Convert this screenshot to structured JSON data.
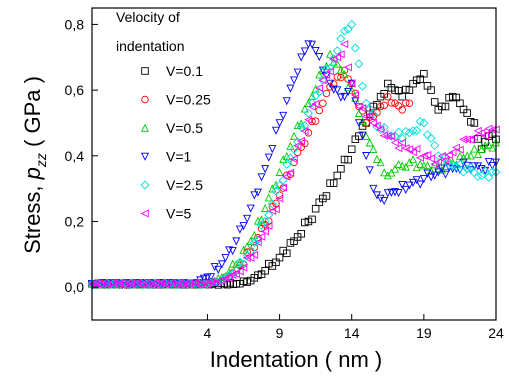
{
  "chart_data": {
    "type": "scatter",
    "title": "",
    "xlabel": "Indentation  ( nm )",
    "ylabel_main": "Stress, ",
    "ylabel_sym": "p",
    "ylabel_sub": "zz",
    "ylabel_unit": "  ( GPa )",
    "xlim": [
      -4,
      24
    ],
    "ylim": [
      -0.1,
      0.85
    ],
    "xticks": [
      4,
      9,
      14,
      19,
      24
    ],
    "xtick_labels": [
      "4",
      "9",
      "14",
      "19",
      "24"
    ],
    "yticks": [
      0.0,
      0.2,
      0.4,
      0.6,
      0.8
    ],
    "ytick_labels": [
      "0,0",
      "0,2",
      "0,4",
      "0,6",
      "0,8"
    ],
    "grid": false,
    "legend_title": "Velocity of indentation",
    "legend_title_lines": [
      "Velocity of",
      "indentation"
    ],
    "legend_position": "top-center",
    "series": [
      {
        "name": "V=0.1",
        "marker": "square",
        "color": "#000000",
        "x": [
          -4,
          6,
          7,
          8,
          9,
          10,
          11,
          12,
          13,
          14,
          14.5,
          15,
          15.5,
          16,
          16.5,
          17,
          17.5,
          18,
          18.5,
          19,
          19.5,
          20,
          20.5,
          21,
          21.5,
          22,
          22.5,
          23,
          23.5,
          24
        ],
        "y": [
          0.01,
          0.01,
          0.02,
          0.05,
          0.09,
          0.14,
          0.2,
          0.27,
          0.34,
          0.42,
          0.46,
          0.5,
          0.55,
          0.58,
          0.62,
          0.6,
          0.58,
          0.6,
          0.63,
          0.65,
          0.6,
          0.54,
          0.55,
          0.58,
          0.56,
          0.53,
          0.5,
          0.42,
          0.46,
          0.45
        ]
      },
      {
        "name": "V=0.25",
        "marker": "circle",
        "color": "#ff0000",
        "x": [
          -4,
          4,
          5,
          6,
          7,
          8,
          9,
          10,
          11,
          12,
          12.5,
          13,
          13.5,
          14,
          14.5,
          15,
          15.5,
          16,
          16.5,
          17,
          17.5,
          18
        ],
        "y": [
          0.01,
          0.01,
          0.02,
          0.05,
          0.11,
          0.19,
          0.28,
          0.38,
          0.47,
          0.56,
          0.61,
          0.64,
          0.66,
          0.62,
          0.55,
          0.5,
          0.52,
          0.55,
          0.58,
          0.56,
          0.54,
          0.56
        ]
      },
      {
        "name": "V=0.5",
        "marker": "triangle-up",
        "color": "#00cc00",
        "x": [
          -4,
          4,
          5,
          6,
          7,
          8,
          9,
          10,
          11,
          12,
          12.5,
          13,
          14,
          14.5,
          15,
          15.5,
          16,
          16.5,
          17,
          18,
          19,
          20,
          21,
          22,
          23,
          24
        ],
        "y": [
          0.01,
          0.01,
          0.03,
          0.07,
          0.14,
          0.24,
          0.35,
          0.46,
          0.56,
          0.66,
          0.71,
          0.68,
          0.6,
          0.53,
          0.46,
          0.42,
          0.38,
          0.34,
          0.36,
          0.38,
          0.37,
          0.36,
          0.38,
          0.4,
          0.42,
          0.44
        ]
      },
      {
        "name": "V=1",
        "marker": "triangle-down",
        "color": "#0000ff",
        "x": [
          -4,
          3,
          4,
          5,
          6,
          7,
          8,
          9,
          10,
          10.5,
          11,
          11.5,
          12,
          12.5,
          13,
          13.5,
          14,
          14.5,
          15,
          15.5,
          16,
          17,
          18,
          19,
          20,
          21,
          22,
          23,
          24
        ],
        "y": [
          0.01,
          0.01,
          0.03,
          0.07,
          0.14,
          0.24,
          0.36,
          0.5,
          0.63,
          0.7,
          0.74,
          0.72,
          0.66,
          0.62,
          0.6,
          0.58,
          0.62,
          0.5,
          0.4,
          0.3,
          0.27,
          0.29,
          0.31,
          0.33,
          0.35,
          0.36,
          0.37,
          0.36,
          0.38
        ]
      },
      {
        "name": "V=2.5",
        "marker": "diamond",
        "color": "#00dddd",
        "x": [
          -4,
          4,
          5,
          6,
          7,
          8,
          9,
          10,
          11,
          12,
          13,
          13.5,
          14,
          14.5,
          15,
          16,
          17,
          18,
          19,
          20,
          21,
          22,
          23,
          24
        ],
        "y": [
          0.01,
          0.01,
          0.02,
          0.05,
          0.11,
          0.2,
          0.31,
          0.42,
          0.53,
          0.63,
          0.72,
          0.78,
          0.8,
          0.68,
          0.56,
          0.48,
          0.46,
          0.47,
          0.5,
          0.4,
          0.37,
          0.36,
          0.34,
          0.35
        ]
      },
      {
        "name": "V=5",
        "marker": "triangle-left",
        "color": "#ff00ff",
        "x": [
          -4,
          4,
          5,
          6,
          7,
          8,
          9,
          10,
          11,
          12,
          13,
          13.5,
          14,
          14.5,
          15,
          15.5,
          16,
          17,
          18,
          19,
          20,
          21,
          22,
          23,
          24
        ],
        "y": [
          0.01,
          0.01,
          0.02,
          0.04,
          0.09,
          0.17,
          0.27,
          0.39,
          0.51,
          0.63,
          0.7,
          0.74,
          0.62,
          0.55,
          0.52,
          0.5,
          0.48,
          0.44,
          0.42,
          0.4,
          0.38,
          0.41,
          0.45,
          0.47,
          0.48
        ]
      }
    ]
  }
}
